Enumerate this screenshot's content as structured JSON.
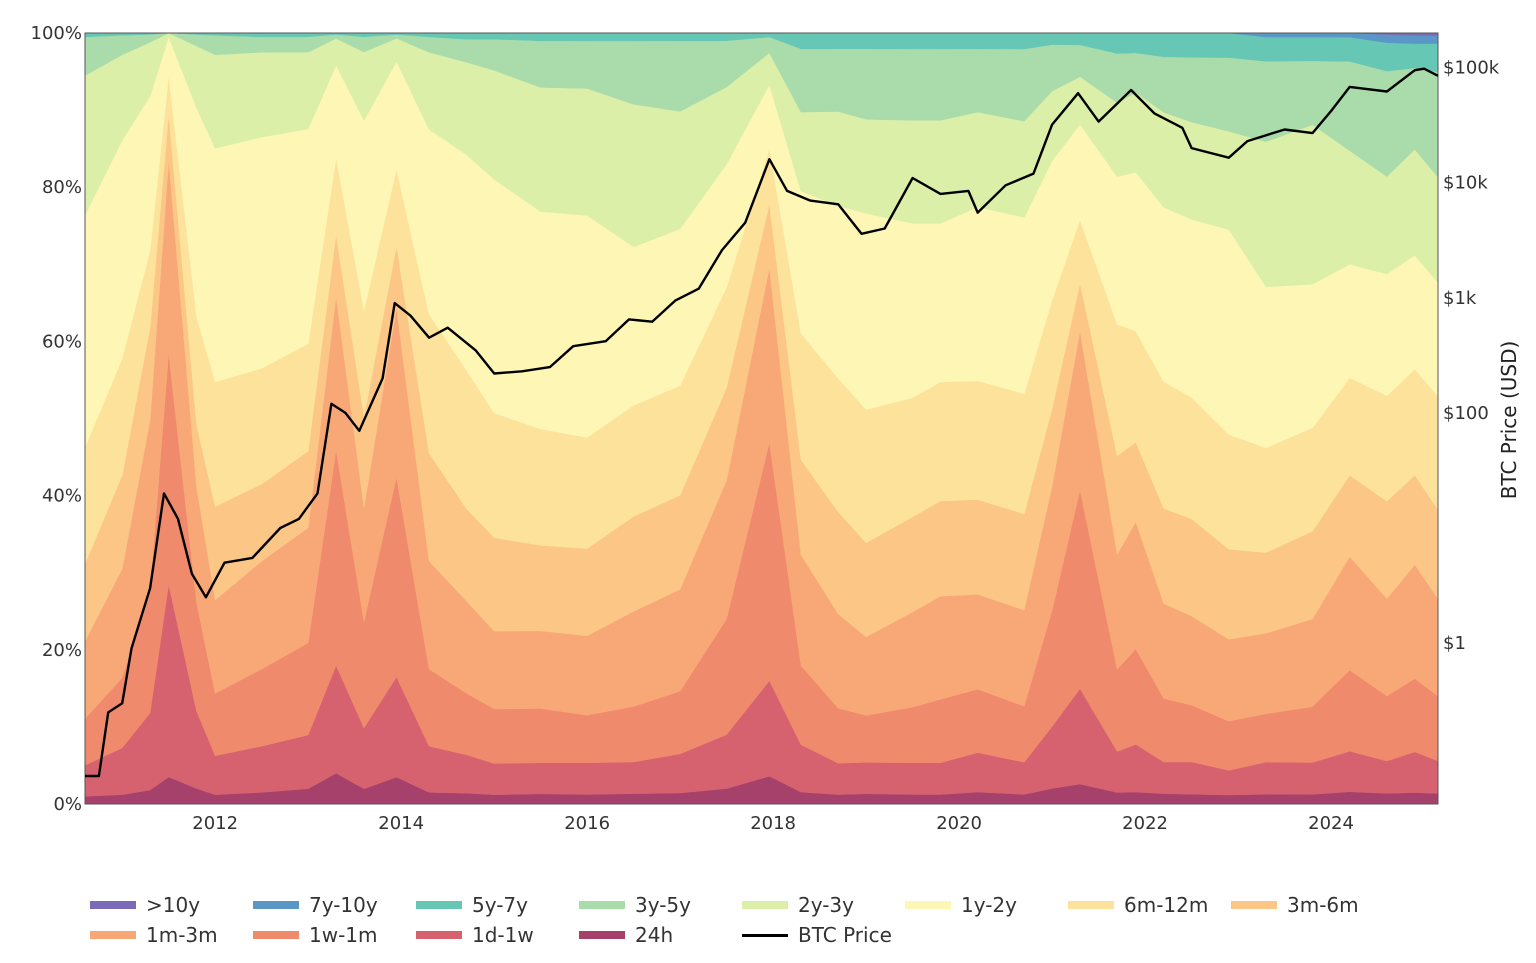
{
  "chart_data": {
    "type": "area",
    "title": "",
    "stacked": true,
    "normalized": true,
    "y_axis_left": {
      "ticks": [
        "0%",
        "20%",
        "40%",
        "60%",
        "80%",
        "100%"
      ],
      "ylim": [
        0,
        100
      ]
    },
    "y_axis_right": {
      "label": "BTC Price (USD)",
      "scale": "log",
      "ticks": [
        "$1",
        "$100",
        "$1k",
        "$10k",
        "$100k"
      ],
      "tick_values": [
        1,
        100,
        1000,
        10000,
        100000
      ],
      "ylim": [
        0.04,
        200000
      ]
    },
    "x_axis": {
      "ticks": [
        "2012",
        "2014",
        "2016",
        "2018",
        "2020",
        "2022",
        "2024"
      ],
      "tick_values": [
        2012,
        2014,
        2016,
        2018,
        2020,
        2022,
        2024
      ],
      "xlim": [
        2010.6,
        2025.15
      ]
    },
    "legend_position": "bottom",
    "x": [
      2010.6,
      2011.0,
      2011.3,
      2011.5,
      2011.8,
      2012.0,
      2012.5,
      2013.0,
      2013.3,
      2013.6,
      2013.95,
      2014.3,
      2014.7,
      2015.0,
      2015.5,
      2016.0,
      2016.5,
      2017.0,
      2017.5,
      2017.96,
      2018.3,
      2018.7,
      2019.0,
      2019.5,
      2019.8,
      2020.2,
      2020.7,
      2021.0,
      2021.3,
      2021.7,
      2021.9,
      2022.2,
      2022.5,
      2022.9,
      2023.3,
      2023.8,
      2024.2,
      2024.6,
      2024.9,
      2025.15
    ],
    "series": [
      {
        "name": "24h",
        "color": "#a5416b",
        "values": [
          1.0,
          1.2,
          1.8,
          3.5,
          2.0,
          1.2,
          1.5,
          2.0,
          4.0,
          2.0,
          3.5,
          1.5,
          1.4,
          1.2,
          1.3,
          1.2,
          1.3,
          1.4,
          2.0,
          3.5,
          1.5,
          1.2,
          1.3,
          1.2,
          1.2,
          1.5,
          1.2,
          2.0,
          2.5,
          1.4,
          1.5,
          1.3,
          1.2,
          1.1,
          1.2,
          1.2,
          1.5,
          1.3,
          1.4,
          1.3
        ]
      },
      {
        "name": "1d-1w",
        "color": "#d6626f",
        "values": [
          4.0,
          6.0,
          10,
          25,
          10,
          5,
          6,
          7,
          14,
          8,
          13,
          6,
          5,
          4,
          4,
          4,
          4,
          5,
          7,
          12,
          6,
          4,
          4,
          4,
          4,
          5,
          4,
          8,
          12,
          5,
          6,
          4,
          4,
          3,
          4,
          4,
          5,
          4,
          5,
          4
        ]
      },
      {
        "name": "1w-1m",
        "color": "#f08a6c",
        "values": [
          6.0,
          9.0,
          16,
          30,
          14,
          8,
          10,
          12,
          28,
          14,
          26,
          10,
          8,
          7,
          7,
          6,
          7,
          8,
          15,
          30,
          10,
          7,
          6,
          7,
          8,
          8,
          7,
          15,
          25,
          10,
          12,
          8,
          7,
          6,
          6,
          7,
          10,
          8,
          9,
          8
        ]
      },
      {
        "name": "1m-3m",
        "color": "#f8a876",
        "values": [
          10,
          14,
          22,
          25,
          15,
          12,
          14,
          15,
          20,
          15,
          22,
          14,
          12,
          10,
          10,
          10,
          12,
          13,
          18,
          22,
          14,
          12,
          10,
          12,
          13,
          12,
          12,
          16,
          20,
          14,
          16,
          12,
          11,
          10,
          10,
          11,
          14,
          12,
          14,
          12
        ]
      },
      {
        "name": "3m-6m",
        "color": "#fbc686",
        "values": [
          10,
          12,
          12,
          6,
          8,
          12,
          10,
          10,
          8,
          12,
          8,
          14,
          12,
          12,
          11,
          11,
          12,
          12,
          12,
          8,
          12,
          13,
          12,
          12,
          12,
          12,
          12,
          10,
          6,
          12,
          10,
          12,
          12,
          11,
          10,
          11,
          10,
          12,
          11,
          11
        ]
      },
      {
        "name": "6m-12m",
        "color": "#fde29c",
        "values": [
          15,
          15,
          10,
          5,
          14,
          16,
          15,
          14,
          10,
          14,
          10,
          18,
          18,
          16,
          15,
          14,
          14,
          14,
          13,
          7,
          16,
          17,
          17,
          15,
          15,
          15,
          15,
          14,
          8,
          16,
          14,
          16,
          15,
          14,
          13,
          13,
          12,
          13,
          13,
          14
        ]
      },
      {
        "name": "1y-2y",
        "color": "#fdf6b4",
        "values": [
          30,
          28,
          20,
          5,
          27,
          30,
          30,
          28,
          12,
          25,
          14,
          24,
          28,
          30,
          28,
          28,
          20,
          20,
          16,
          8,
          18,
          22,
          25,
          22,
          20,
          22,
          22,
          18,
          12,
          18,
          20,
          22,
          22,
          25,
          20,
          18,
          14,
          15,
          14,
          14
        ]
      },
      {
        "name": "2y-3y",
        "color": "#dcefa8",
        "values": [
          18,
          11,
          7,
          0.5,
          8,
          12,
          11,
          10,
          3.5,
          9,
          3,
          10,
          12,
          14,
          16,
          16,
          18,
          15,
          10,
          4,
          10,
          12,
          12,
          13,
          13,
          12,
          12,
          9,
          6,
          9,
          10,
          12,
          12,
          12,
          18,
          20,
          14,
          12,
          13,
          13
        ]
      },
      {
        "name": "3y-5y",
        "color": "#a9dcaa",
        "values": [
          5,
          2.5,
          1,
          0,
          1.5,
          2.5,
          2,
          2,
          0.5,
          2,
          0.5,
          2,
          3,
          4,
          6,
          6,
          8,
          9,
          6,
          2,
          8,
          8,
          9,
          9,
          9,
          8,
          9,
          6,
          4,
          6,
          5,
          7,
          8,
          9,
          10,
          8,
          11,
          13,
          10,
          13
        ]
      },
      {
        "name": "5y-7y",
        "color": "#66c7b5",
        "values": [
          0.5,
          0.3,
          0.2,
          0,
          0.2,
          0.3,
          0.5,
          0.5,
          0.2,
          0.5,
          0.2,
          0.5,
          0.8,
          0.8,
          1,
          1,
          1,
          1,
          1,
          0.5,
          2,
          2,
          2,
          2,
          2,
          2,
          2,
          1.5,
          1.5,
          2.5,
          2.5,
          3,
          3,
          3,
          3,
          3,
          3,
          3.5,
          3,
          3.5
        ]
      },
      {
        "name": "7y-10y",
        "color": "#5a97c7",
        "values": [
          0,
          0,
          0,
          0,
          0,
          0,
          0,
          0,
          0,
          0,
          0,
          0,
          0,
          0,
          0,
          0,
          0,
          0,
          0,
          0,
          0,
          0,
          0,
          0,
          0,
          0,
          0,
          0,
          0,
          0,
          0,
          0,
          0,
          0,
          0.5,
          0.5,
          0.5,
          1,
          1,
          1
        ]
      },
      {
        "name": ">10y",
        "color": "#7a6ab8",
        "values": [
          0,
          0,
          0,
          0,
          0,
          0,
          0,
          0,
          0,
          0,
          0,
          0,
          0,
          0,
          0,
          0,
          0,
          0,
          0,
          0,
          0,
          0,
          0,
          0,
          0,
          0,
          0,
          0,
          0,
          0,
          0,
          0,
          0,
          0,
          0,
          0,
          0,
          0.2,
          0.3,
          0.3
        ]
      }
    ],
    "price_series": {
      "name": "BTC Price",
      "color": "#000000",
      "points": [
        [
          2010.6,
          0.07
        ],
        [
          2010.75,
          0.07
        ],
        [
          2010.85,
          0.25
        ],
        [
          2011.0,
          0.3
        ],
        [
          2011.1,
          0.9
        ],
        [
          2011.3,
          3
        ],
        [
          2011.45,
          20
        ],
        [
          2011.6,
          12
        ],
        [
          2011.75,
          4
        ],
        [
          2011.9,
          2.5
        ],
        [
          2012.1,
          5
        ],
        [
          2012.4,
          5.5
        ],
        [
          2012.7,
          10
        ],
        [
          2012.9,
          12
        ],
        [
          2013.1,
          20
        ],
        [
          2013.25,
          120
        ],
        [
          2013.4,
          100
        ],
        [
          2013.55,
          70
        ],
        [
          2013.8,
          200
        ],
        [
          2013.93,
          900
        ],
        [
          2014.1,
          700
        ],
        [
          2014.3,
          450
        ],
        [
          2014.5,
          550
        ],
        [
          2014.8,
          350
        ],
        [
          2015.0,
          220
        ],
        [
          2015.3,
          230
        ],
        [
          2015.6,
          250
        ],
        [
          2015.85,
          380
        ],
        [
          2016.2,
          420
        ],
        [
          2016.45,
          650
        ],
        [
          2016.7,
          620
        ],
        [
          2016.95,
          950
        ],
        [
          2017.2,
          1200
        ],
        [
          2017.45,
          2600
        ],
        [
          2017.7,
          4500
        ],
        [
          2017.96,
          16000
        ],
        [
          2018.15,
          8500
        ],
        [
          2018.4,
          7000
        ],
        [
          2018.7,
          6500
        ],
        [
          2018.95,
          3600
        ],
        [
          2019.2,
          4000
        ],
        [
          2019.5,
          11000
        ],
        [
          2019.8,
          8000
        ],
        [
          2020.1,
          8500
        ],
        [
          2020.2,
          5500
        ],
        [
          2020.5,
          9500
        ],
        [
          2020.8,
          12000
        ],
        [
          2021.0,
          32000
        ],
        [
          2021.28,
          60000
        ],
        [
          2021.5,
          34000
        ],
        [
          2021.85,
          64000
        ],
        [
          2022.1,
          40000
        ],
        [
          2022.4,
          30000
        ],
        [
          2022.5,
          20000
        ],
        [
          2022.9,
          16500
        ],
        [
          2023.1,
          23000
        ],
        [
          2023.5,
          29000
        ],
        [
          2023.8,
          27000
        ],
        [
          2024.0,
          42000
        ],
        [
          2024.2,
          68000
        ],
        [
          2024.6,
          62000
        ],
        [
          2024.9,
          95000
        ],
        [
          2025.0,
          98000
        ],
        [
          2025.15,
          85000
        ]
      ]
    }
  },
  "legend": {
    "row1": [
      {
        "label": ">10y",
        "color": "#7a6ab8"
      },
      {
        "label": "7y-10y",
        "color": "#5a97c7"
      },
      {
        "label": "5y-7y",
        "color": "#66c7b5"
      },
      {
        "label": "3y-5y",
        "color": "#a9dcaa"
      },
      {
        "label": "2y-3y",
        "color": "#dcefa8"
      },
      {
        "label": "1y-2y",
        "color": "#fdf6b4"
      },
      {
        "label": "6m-12m",
        "color": "#fde29c"
      },
      {
        "label": "3m-6m",
        "color": "#fbc686"
      }
    ],
    "row2": [
      {
        "label": "1m-3m",
        "color": "#f8a876"
      },
      {
        "label": "1w-1m",
        "color": "#f08a6c"
      },
      {
        "label": "1d-1w",
        "color": "#d6626f"
      },
      {
        "label": "24h",
        "color": "#a5416b"
      },
      {
        "label": "BTC Price",
        "color": "#000000"
      }
    ]
  }
}
